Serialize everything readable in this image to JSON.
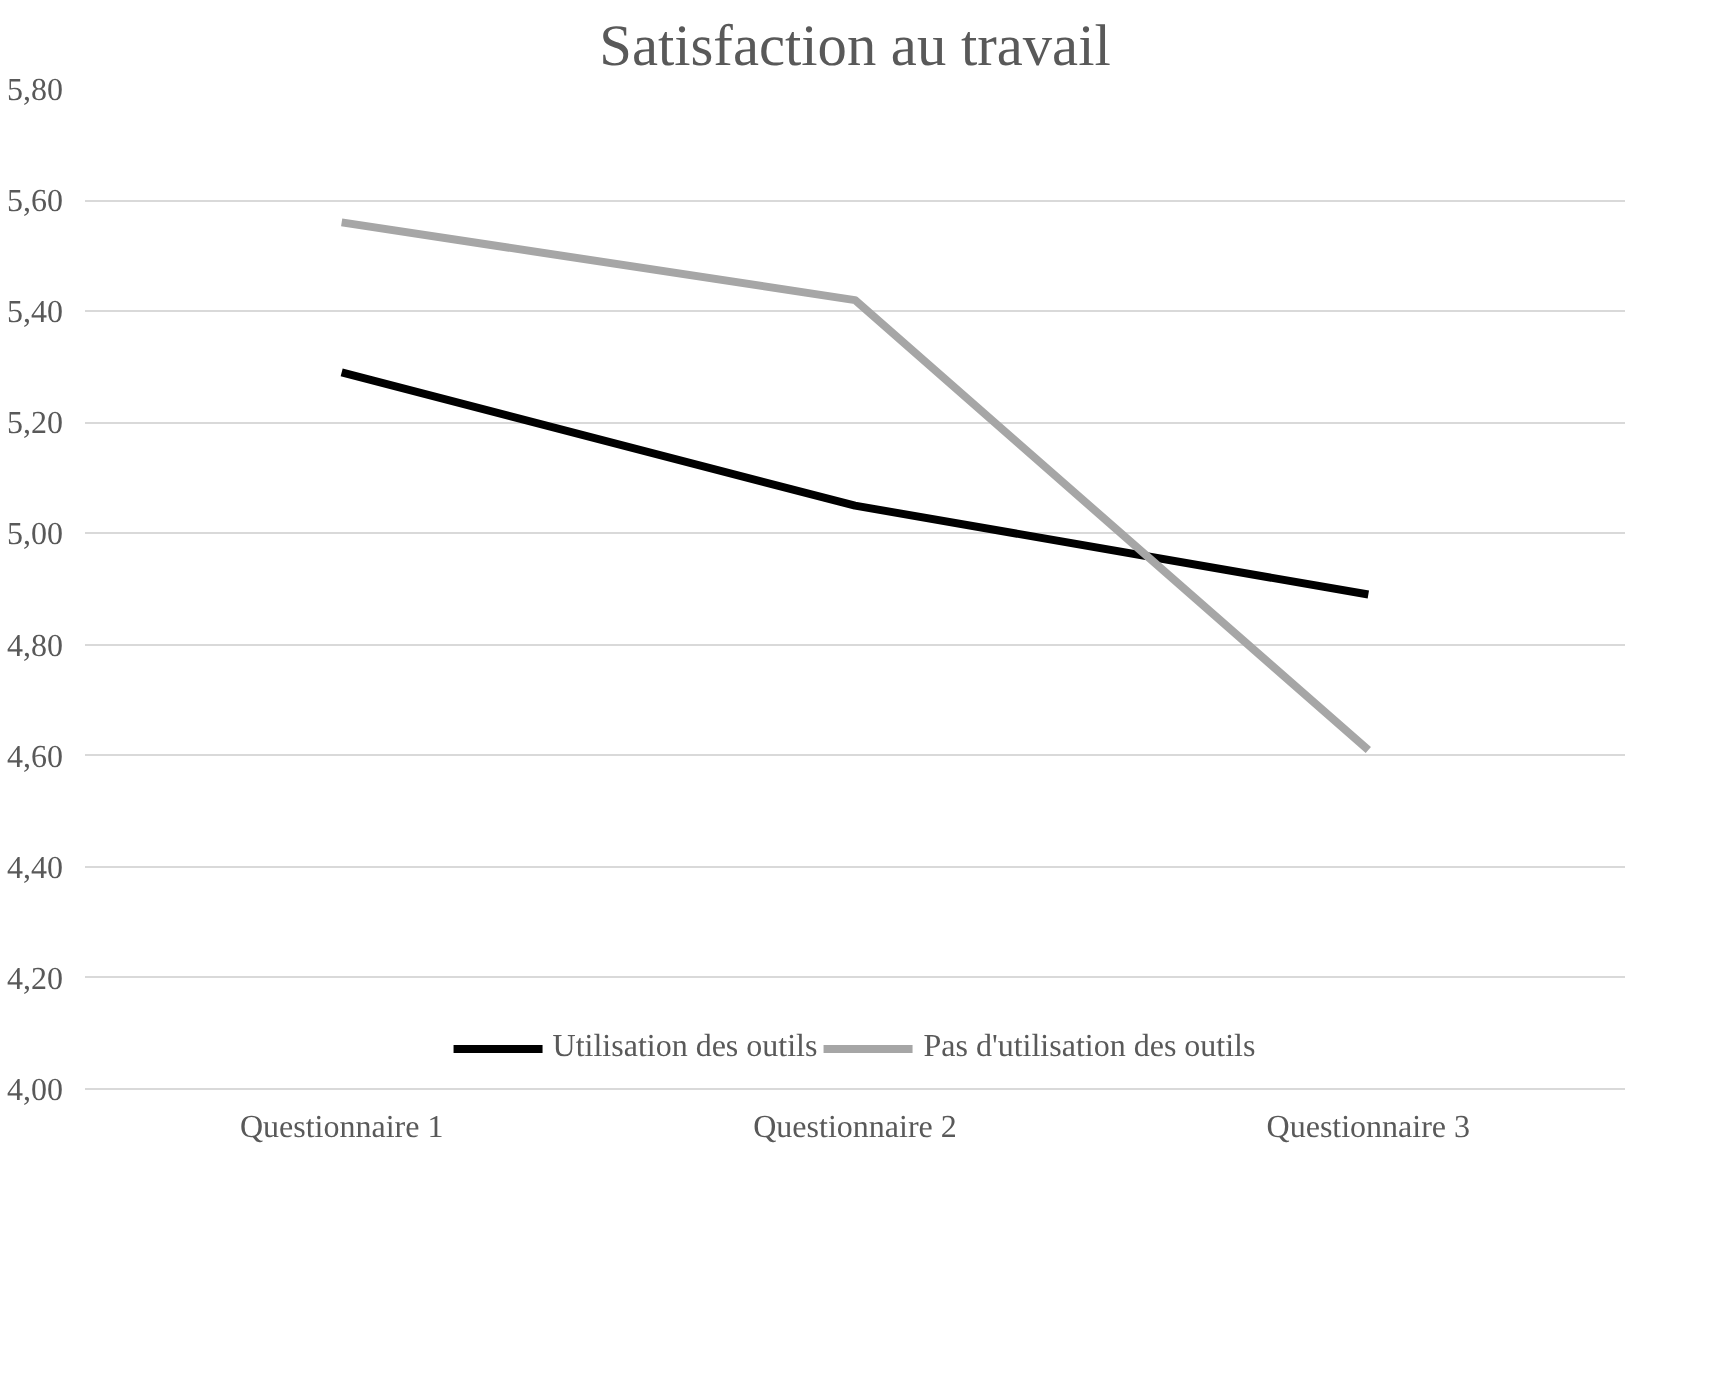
{
  "chart_data": {
    "type": "line",
    "title": "Satisfaction au travail",
    "categories": [
      "Questionnaire 1",
      "Questionnaire 2",
      "Questionnaire 3"
    ],
    "series": [
      {
        "name": "Utilisation des outils",
        "color": "#000000",
        "values": [
          5.29,
          5.05,
          4.89
        ]
      },
      {
        "name": "Pas d'utilisation des outils",
        "color": "#a6a6a6",
        "values": [
          5.56,
          5.42,
          4.61
        ]
      }
    ],
    "ylim": [
      4.0,
      5.8
    ],
    "yticks": [
      {
        "value": 4.0,
        "label": "4,00"
      },
      {
        "value": 4.2,
        "label": "4,20"
      },
      {
        "value": 4.4,
        "label": "4,40"
      },
      {
        "value": 4.6,
        "label": "4,60"
      },
      {
        "value": 4.8,
        "label": "4,80"
      },
      {
        "value": 5.0,
        "label": "5,00"
      },
      {
        "value": 5.2,
        "label": "5,20"
      },
      {
        "value": 5.4,
        "label": "5,40"
      },
      {
        "value": 5.6,
        "label": "5,60"
      },
      {
        "value": 5.8,
        "label": "5,80"
      }
    ],
    "grid": "y",
    "legend": "bottom",
    "marker": "none",
    "line_style": "solid"
  }
}
